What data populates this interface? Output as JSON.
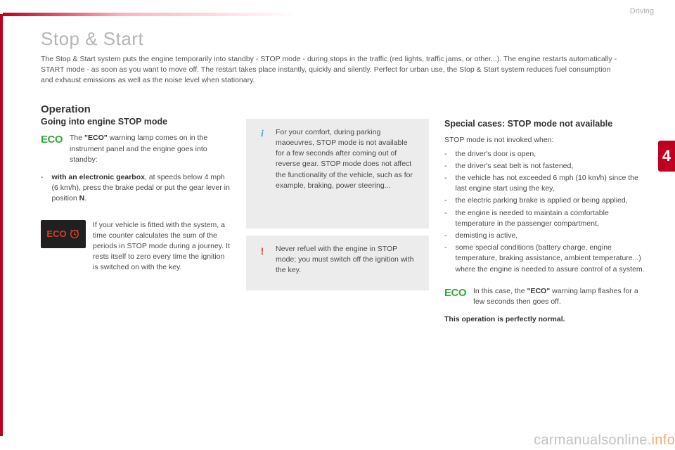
{
  "section_label": "Driving",
  "chapter_number": "4",
  "title": "Stop & Start",
  "intro": "The Stop & Start system puts the engine temporarily into standby - STOP mode - during stops in the traffic (red lights, traffic jams, or other...). The engine restarts automatically - START mode - as soon as you want to move off. The restart takes place instantly, quickly and silently. Perfect for urban use, the Stop & Start system reduces fuel consumption and exhaust emissions as well as the noise level when stationary.",
  "col1": {
    "h2": "Operation",
    "h3": "Going into engine STOP mode",
    "eco_label": "ECO",
    "eco_text_pre": "The ",
    "eco_text_bold": "\"ECO\"",
    "eco_text_post": " warning lamp comes on in the instrument panel and the engine goes into standby:",
    "gearbox_pre": "with an electronic gearbox",
    "gearbox_post": ", at speeds below 4 mph (6 km/h), press the brake pedal or put the gear lever in position ",
    "gearbox_n": "N",
    "gearbox_dot": ".",
    "counter_text": "If your vehicle is fitted with the system, a time counter calculates the sum of the periods in STOP mode during a journey. It rests itself to zero every time the ignition is switched on with the key.",
    "badge_text": "ECO"
  },
  "col2": {
    "info_text": "For your comfort, during parking maoeuvres, STOP mode is not available for a few seconds after coming out of reverse gear. STOP mode does not affect the functionality of the vehicle, such as for example, braking, power steering...",
    "warn_text": "Never refuel with the engine in STOP mode; you must switch off the ignition with the key."
  },
  "col3": {
    "h3": "Special cases: STOP mode not available",
    "lead": "STOP mode is not invoked when:",
    "items": [
      "the driver's door is open,",
      "the driver's seat belt is not fastened,",
      "the vehicle has not exceeded 6 mph (10 km/h) since the last engine start using the key,",
      "the electric parking brake is applied or being applied,",
      "the engine is needed to maintain a comfortable temperature in the passenger compartment,",
      "demisting is active,",
      "some special conditions (battery charge, engine temperature, braking assistance, ambient temperature...) where the engine is needed to assure control of a system."
    ],
    "eco_label": "ECO",
    "eco_pre": "In this case, the ",
    "eco_bold": "\"ECO\"",
    "eco_post": " warning lamp flashes for a few seconds then goes off.",
    "final": "This operation is perfectly normal."
  },
  "watermark_a": "carmanualsonline",
  "watermark_b": ".info",
  "colors": {
    "accent_red": "#c00020",
    "eco_green": "#35a83c",
    "badge_bg": "#202020",
    "badge_fg": "#d94020",
    "box_bg": "#ececec",
    "info_blue": "#4ba8cc",
    "warn_orange": "#d05030",
    "text": "#4a4a4a"
  }
}
